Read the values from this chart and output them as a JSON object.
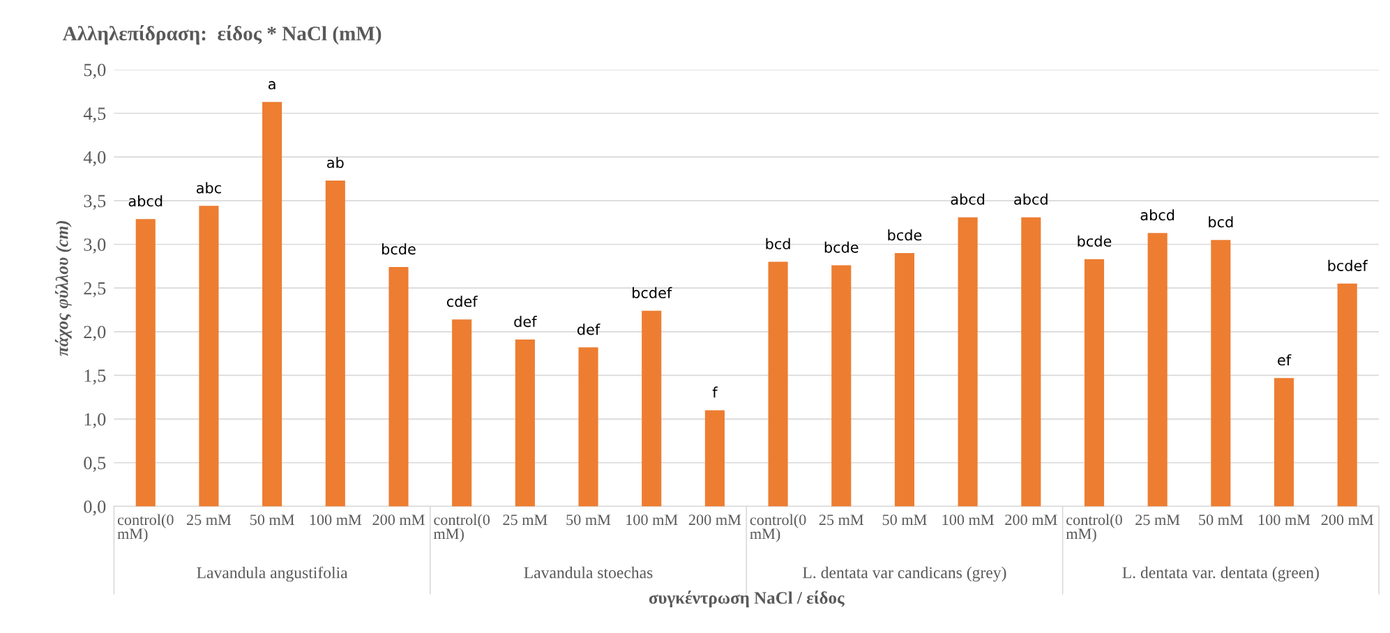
{
  "chart_data": {
    "type": "bar",
    "title": "Αλληλεπίδραση:  είδος * NaCl (mM)",
    "xlabel": "συγκέντρωση NaCl / είδος",
    "ylabel": "πάχος φύλλου (cm)",
    "categories": [
      "control(0\nmM)",
      "25 mM",
      "50 mM",
      "100 mM",
      "200 mM",
      "control(0\nmM)",
      "25 mM",
      "50 mM",
      "100 mM",
      "200 mM",
      "control(0\nmM)",
      "25 mM",
      "50 mM",
      "100 mM",
      "200 mM",
      "control(0\nmM)",
      "25 mM",
      "50 mM",
      "100 mM",
      "200 mM"
    ],
    "values": [
      3.29,
      3.44,
      4.63,
      3.73,
      2.74,
      2.14,
      1.91,
      1.82,
      2.24,
      1.1,
      2.8,
      2.76,
      2.9,
      3.31,
      3.31,
      2.83,
      3.13,
      3.05,
      1.47,
      2.55
    ],
    "value_labels": [
      "abcd",
      "abc",
      "a",
      "ab",
      "bcde",
      "cdef",
      "def",
      "def",
      "bcdef",
      "f",
      "bcd",
      "bcde",
      "bcde",
      "abcd",
      "abcd",
      "bcde",
      "abcd",
      "bcd",
      "ef",
      "bcdef"
    ],
    "color": "#ed7d31",
    "annotations": [
      "Lavandula angustifolia",
      "Lavandula stoechas",
      "L. dentata var candicans (grey)",
      "L. dentata var. dentata (green)"
    ],
    "ylim": [
      0,
      5
    ],
    "yticks": [
      {
        "value": 0,
        "label": "0,0"
      },
      {
        "value": 0.5,
        "label": "0,5"
      },
      {
        "value": 1,
        "label": "1,0"
      },
      {
        "value": 1.5,
        "label": "1,5"
      },
      {
        "value": 2,
        "label": "2,0"
      },
      {
        "value": 2.5,
        "label": "2,5"
      },
      {
        "value": 3,
        "label": "3,0"
      },
      {
        "value": 3.5,
        "label": "3,5"
      },
      {
        "value": 4,
        "label": "4,0"
      },
      {
        "value": 4.5,
        "label": "4,5"
      },
      {
        "value": 5,
        "label": "5,0"
      }
    ],
    "grid": "y",
    "legend": false
  }
}
